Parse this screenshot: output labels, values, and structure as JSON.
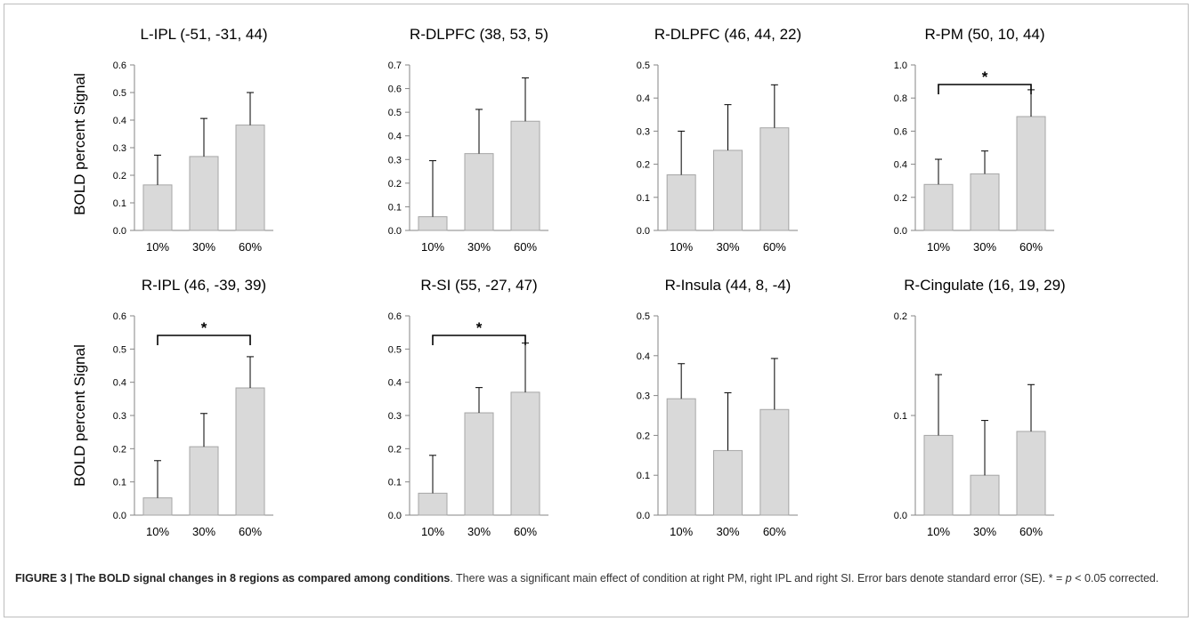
{
  "figure": {
    "bar_color": "#d9d9d9",
    "bar_stroke": "#a6a6a6",
    "text_color": "#000000",
    "ylabel": "BOLD percent Signal"
  },
  "caption": {
    "label": "FIGURE 3 | The BOLD signal changes in 8 regions as compared among conditions",
    "text_before_p": ". There was a significant main effect of condition at right PM, right IPL and right SI. Error bars denote standard error (SE). * = ",
    "p_symbol": "p",
    "text_after_p": " < 0.05 corrected."
  },
  "chart_data": [
    {
      "type": "bar",
      "title": "L-IPL (-51, -31, 44)",
      "categories": [
        "10%",
        "30%",
        "60%"
      ],
      "values": [
        0.165,
        0.268,
        0.382
      ],
      "errors": [
        0.108,
        0.138,
        0.118
      ],
      "ylim": [
        0,
        0.6
      ],
      "yticks": [
        "0.0",
        "0.1",
        "0.2",
        "0.3",
        "0.4",
        "0.5",
        "0.6"
      ],
      "ylabel": "BOLD percent Signal",
      "significance": null
    },
    {
      "type": "bar",
      "title": "R-DLPFC (38, 53, 5)",
      "categories": [
        "10%",
        "30%",
        "60%"
      ],
      "values": [
        0.058,
        0.325,
        0.462
      ],
      "errors": [
        0.237,
        0.187,
        0.183
      ],
      "ylim": [
        0,
        0.7
      ],
      "yticks": [
        "0.0",
        "0.1",
        "0.2",
        "0.3",
        "0.4",
        "0.5",
        "0.6",
        "0.7"
      ],
      "ylabel": "",
      "significance": null
    },
    {
      "type": "bar",
      "title": "R-DLPFC (46, 44, 22)",
      "categories": [
        "10%",
        "30%",
        "60%"
      ],
      "values": [
        0.168,
        0.242,
        0.31
      ],
      "errors": [
        0.132,
        0.138,
        0.13
      ],
      "ylim": [
        0,
        0.5
      ],
      "yticks": [
        "0.0",
        "0.1",
        "0.2",
        "0.3",
        "0.4",
        "0.5"
      ],
      "ylabel": "",
      "significance": null
    },
    {
      "type": "bar",
      "title": "R-PM (50, 10, 44)",
      "categories": [
        "10%",
        "30%",
        "60%"
      ],
      "values": [
        0.278,
        0.342,
        0.688
      ],
      "errors": [
        0.152,
        0.138,
        0.162
      ],
      "ylim": [
        0,
        1.0
      ],
      "yticks": [
        "0.0",
        "0.2",
        "0.4",
        "0.6",
        "0.8",
        "1.0"
      ],
      "ylabel": "",
      "significance": {
        "from": 0,
        "to": 2,
        "label": "*"
      }
    },
    {
      "type": "bar",
      "title": "R-IPL (46, -39, 39)",
      "categories": [
        "10%",
        "30%",
        "60%"
      ],
      "values": [
        0.052,
        0.206,
        0.383
      ],
      "errors": [
        0.112,
        0.1,
        0.094
      ],
      "ylim": [
        0,
        0.6
      ],
      "yticks": [
        "0.0",
        "0.1",
        "0.2",
        "0.3",
        "0.4",
        "0.5",
        "0.6"
      ],
      "ylabel": "BOLD percent Signal",
      "significance": {
        "from": 0,
        "to": 2,
        "label": "*"
      }
    },
    {
      "type": "bar",
      "title": "R-SI (55, -27, 47)",
      "categories": [
        "10%",
        "30%",
        "60%"
      ],
      "values": [
        0.066,
        0.308,
        0.37
      ],
      "errors": [
        0.114,
        0.076,
        0.148
      ],
      "ylim": [
        0,
        0.6
      ],
      "yticks": [
        "0.0",
        "0.1",
        "0.2",
        "0.3",
        "0.4",
        "0.5",
        "0.6"
      ],
      "ylabel": "",
      "significance": {
        "from": 0,
        "to": 2,
        "label": "*"
      }
    },
    {
      "type": "bar",
      "title": "R-Insula (44, 8, -4)",
      "categories": [
        "10%",
        "30%",
        "60%"
      ],
      "values": [
        0.292,
        0.162,
        0.265
      ],
      "errors": [
        0.088,
        0.145,
        0.128
      ],
      "ylim": [
        0,
        0.5
      ],
      "yticks": [
        "0.0",
        "0.1",
        "0.2",
        "0.3",
        "0.4",
        "0.5"
      ],
      "ylabel": "",
      "significance": null
    },
    {
      "type": "bar",
      "title": "R-Cingulate (16, 19, 29)",
      "categories": [
        "10%",
        "30%",
        "60%"
      ],
      "values": [
        0.08,
        0.04,
        0.084
      ],
      "errors": [
        0.061,
        0.055,
        0.047
      ],
      "ylim": [
        0,
        0.2
      ],
      "yticks": [
        "0.0",
        "0.1",
        "0.2"
      ],
      "ylabel": "",
      "significance": null
    }
  ]
}
